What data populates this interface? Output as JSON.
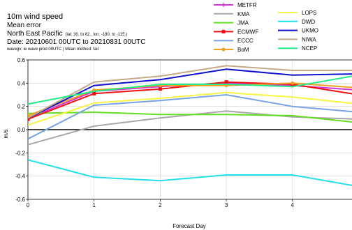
{
  "header": {
    "title": "10m wind speed",
    "subtitle": "Mean error",
    "region": "North East Pacific",
    "region_detail": "(lat: 30. to 62., lon: -180. to -115.)",
    "date": "Date: 20210601 00UTC to 20210831 00UTC",
    "note": "wavegv: ie wave prod 00UTC | Mean method: fair"
  },
  "chart_data": {
    "type": "line",
    "xlabel": "Forecast Day",
    "ylabel": "m/s",
    "xlim": [
      0,
      4.9
    ],
    "ylim": [
      -0.6,
      0.6
    ],
    "x_ticks": [
      0,
      1,
      2,
      3,
      4
    ],
    "y_ticks": [
      -0.6,
      -0.4,
      -0.2,
      0,
      0.2,
      0.4,
      0.6
    ],
    "grid": true,
    "legend_placement": "top-right, outside plot, 2 columns",
    "x": [
      0,
      1,
      2,
      3,
      4,
      5
    ],
    "series": [
      {
        "name": "METFR",
        "color": "#d633d6",
        "marker": "plus",
        "values": [
          0.1,
          0.33,
          0.37,
          0.4,
          0.38,
          0.34
        ]
      },
      {
        "name": "KMA",
        "color": "#a8a8a8",
        "marker": "none",
        "values": [
          -0.13,
          0.03,
          0.1,
          0.16,
          0.11,
          0.09
        ]
      },
      {
        "name": "JMA",
        "color": "#66dd22",
        "marker": "none",
        "values": [
          0.14,
          0.15,
          0.13,
          0.13,
          0.12,
          0.06
        ]
      },
      {
        "name": "ECMWF",
        "color": "#ee1111",
        "marker": "square",
        "values": [
          0.09,
          0.31,
          0.35,
          0.41,
          0.39,
          0.3
        ]
      },
      {
        "name": "ECCC",
        "color": "#77a3e6",
        "marker": "none",
        "values": [
          -0.08,
          0.21,
          0.25,
          0.3,
          0.2,
          0.15
        ]
      },
      {
        "name": "BoM",
        "color": "#f0a020",
        "marker": "circle",
        "values": [
          0.12,
          0.34,
          0.38,
          0.38,
          0.4,
          0.36
        ]
      },
      {
        "name": "LOPS",
        "color": "#f5f542",
        "marker": "none",
        "values": [
          0.04,
          0.23,
          0.27,
          0.32,
          0.28,
          0.22
        ]
      },
      {
        "name": "DWD",
        "color": "#22e0e8",
        "marker": "none",
        "values": [
          -0.26,
          -0.41,
          -0.44,
          -0.39,
          -0.39,
          -0.49
        ]
      },
      {
        "name": "UKMO",
        "color": "#1111cc",
        "marker": "none",
        "values": [
          0.1,
          0.38,
          0.43,
          0.52,
          0.47,
          0.48
        ]
      },
      {
        "name": "NIWA",
        "color": "#c4aa88",
        "marker": "none",
        "values": [
          0.1,
          0.41,
          0.46,
          0.55,
          0.51,
          0.51
        ]
      },
      {
        "name": "NCEP",
        "color": "#22ee88",
        "marker": "none",
        "values": [
          0.22,
          0.33,
          0.39,
          0.39,
          0.37,
          0.47
        ]
      }
    ]
  }
}
